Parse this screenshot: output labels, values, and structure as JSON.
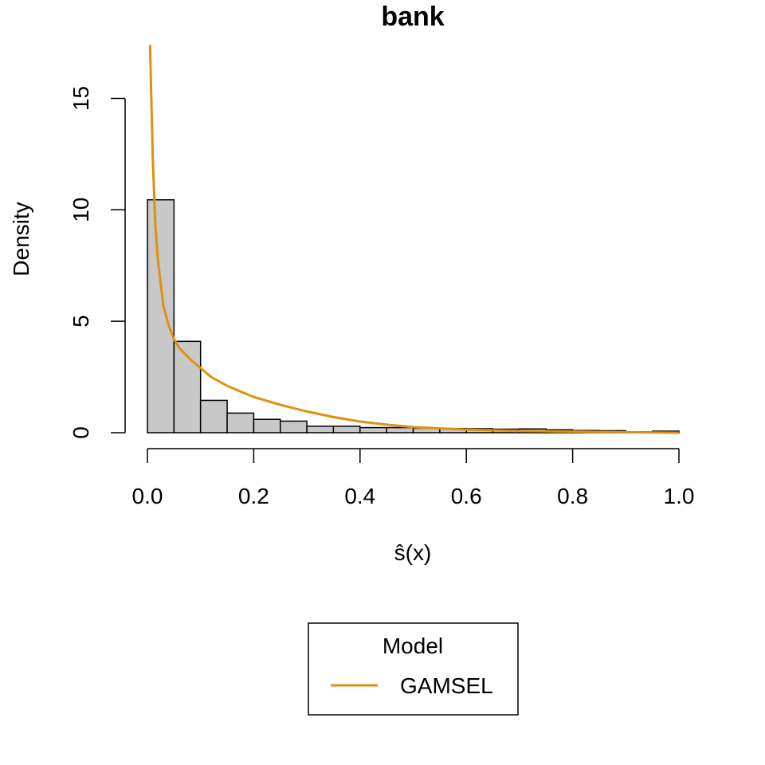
{
  "chart_data": {
    "type": "bar",
    "title": "bank",
    "xlabel": "ŝ(x)",
    "ylabel": "Density",
    "xlim": [
      0,
      1
    ],
    "ylim": [
      0,
      17.5
    ],
    "x_ticks": [
      0.0,
      0.2,
      0.4,
      0.6,
      0.8,
      1.0
    ],
    "x_tick_labels": [
      "0.0",
      "0.2",
      "0.4",
      "0.6",
      "0.8",
      "1.0"
    ],
    "y_ticks": [
      0,
      5,
      10,
      15
    ],
    "y_tick_labels": [
      "0",
      "5",
      "10",
      "15"
    ],
    "histogram": {
      "bin_edges": [
        0.0,
        0.05,
        0.1,
        0.15,
        0.2,
        0.25,
        0.3,
        0.35,
        0.4,
        0.45,
        0.5,
        0.55,
        0.6,
        0.65,
        0.7,
        0.75,
        0.8,
        0.85,
        0.9,
        0.95,
        1.0
      ],
      "density": [
        10.45,
        4.1,
        1.45,
        0.88,
        0.6,
        0.52,
        0.29,
        0.29,
        0.23,
        0.23,
        0.2,
        0.19,
        0.18,
        0.16,
        0.17,
        0.13,
        0.1,
        0.09,
        0.04,
        0.07
      ],
      "fill": "#c8c8c8",
      "stroke": "#000000"
    },
    "series": [
      {
        "name": "GAMSEL",
        "type": "line",
        "color": "#e0900f",
        "x": [
          0.005,
          0.01,
          0.015,
          0.02,
          0.03,
          0.04,
          0.05,
          0.06,
          0.08,
          0.1,
          0.12,
          0.15,
          0.2,
          0.25,
          0.3,
          0.35,
          0.4,
          0.45,
          0.5,
          0.6,
          0.7,
          0.8,
          0.9,
          1.0
        ],
        "y": [
          17.4,
          12.3,
          9.3,
          7.7,
          5.7,
          4.8,
          4.2,
          3.8,
          3.3,
          2.9,
          2.5,
          2.1,
          1.6,
          1.25,
          0.95,
          0.7,
          0.5,
          0.36,
          0.25,
          0.14,
          0.08,
          0.05,
          0.02,
          0.0
        ]
      }
    ],
    "legend": {
      "title": "Model",
      "placement": "bottom-center",
      "entries": [
        "GAMSEL"
      ]
    }
  }
}
